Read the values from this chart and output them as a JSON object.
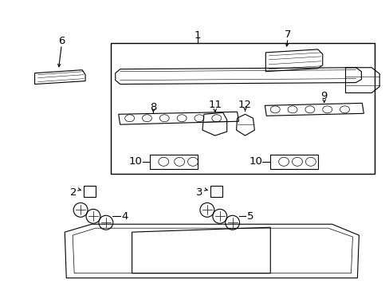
{
  "bg_color": "#ffffff",
  "lc": "#000000",
  "lw": 0.8,
  "fs": 9.5
}
